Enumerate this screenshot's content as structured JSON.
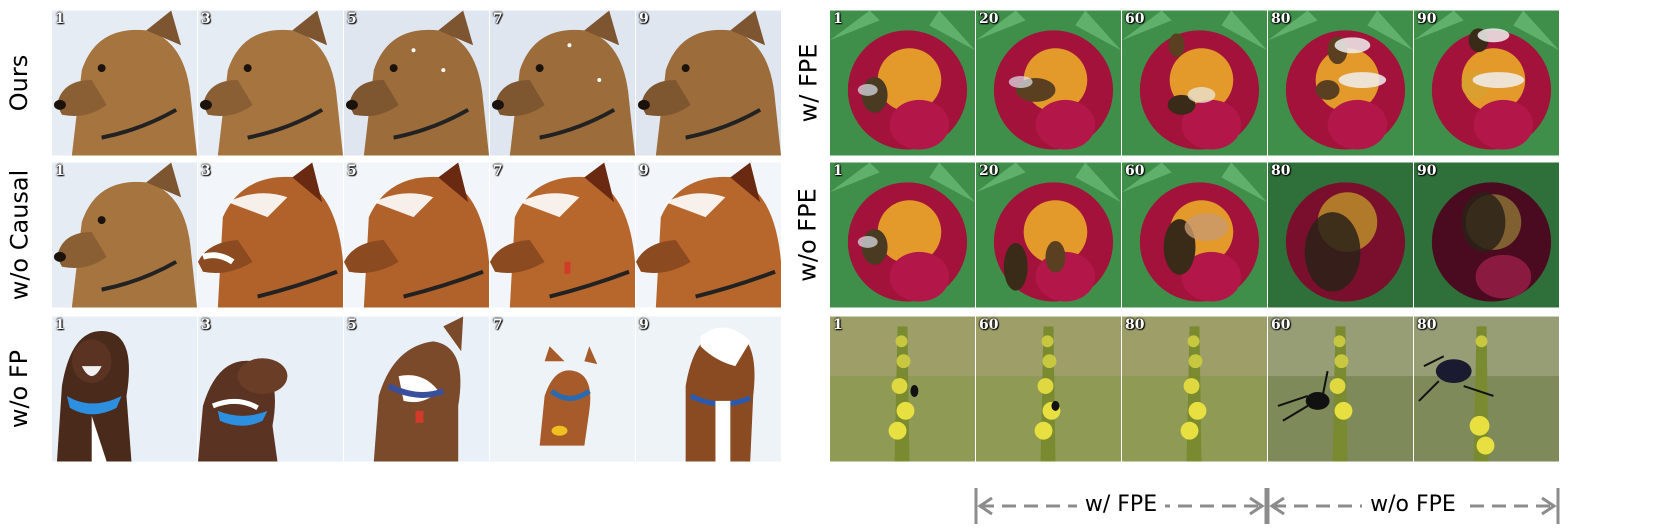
{
  "left_panel": {
    "rows": [
      {
        "label": "Ours",
        "frames": [
          "1",
          "3",
          "5",
          "7",
          "9"
        ]
      },
      {
        "label": "w/o Causal",
        "frames": [
          "1",
          "3",
          "5",
          "7",
          "9"
        ]
      },
      {
        "label": "w/o FP",
        "frames": [
          "1",
          "3",
          "5",
          "7",
          "9"
        ]
      }
    ]
  },
  "right_panel": {
    "rows": [
      {
        "label": "w/ FPE",
        "frames": [
          "1",
          "20",
          "60",
          "80",
          "90"
        ]
      },
      {
        "label": "w/o FPE",
        "frames": [
          "1",
          "20",
          "60",
          "80",
          "90"
        ]
      },
      {
        "label": "",
        "frames": [
          "1",
          "60",
          "80",
          "60",
          "80"
        ]
      }
    ],
    "brackets": [
      {
        "label": "w/ FPE"
      },
      {
        "label": "w/o FPE"
      }
    ]
  },
  "colors": {
    "snow": "#e8eef5",
    "dog_fur": "#a6743f",
    "dark_dog": "#4a2a1a",
    "flower": "#a3123a",
    "leaf": "#3f8f4a",
    "stamen": "#e39a2a",
    "bracket": "#8c8c8c"
  }
}
